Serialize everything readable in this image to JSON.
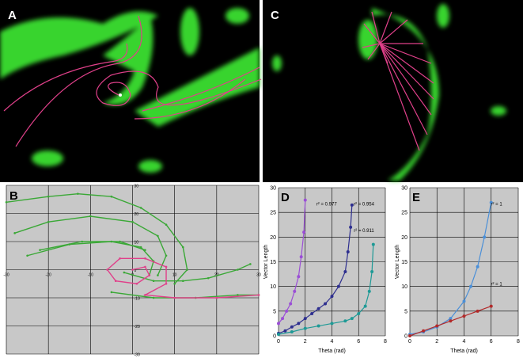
{
  "panel_labels": [
    "A",
    "B",
    "C",
    "D",
    "E"
  ],
  "chart_data": [
    {
      "type": "line",
      "xlim": [
        -30,
        30
      ],
      "ylim": [
        -30,
        30
      ],
      "xticks": [
        -30,
        -20,
        -10,
        0,
        10,
        20,
        30
      ],
      "yticks": [
        -30,
        -20,
        -10,
        0,
        10,
        20,
        30
      ],
      "grid": true,
      "series": [
        {
          "color": "#3aa836",
          "x": [
            -30,
            -20,
            -13,
            -5,
            2,
            8,
            12,
            13,
            10
          ],
          "values": [
            24,
            26,
            27,
            26,
            22,
            16,
            8,
            0,
            -5
          ]
        },
        {
          "color": "#3aa836",
          "x": [
            -28,
            -20,
            -10,
            0,
            6,
            8,
            6
          ],
          "values": [
            13,
            17,
            19,
            17,
            12,
            5,
            -2
          ]
        },
        {
          "color": "#3aa836",
          "x": [
            -25,
            -15,
            -5,
            2,
            5,
            4
          ],
          "values": [
            5,
            9,
            10,
            8,
            3,
            -2
          ]
        },
        {
          "color": "#3aa836",
          "x": [
            -22,
            -12,
            -3,
            3
          ],
          "values": [
            7,
            10,
            10,
            7
          ]
        },
        {
          "color": "#3aa836",
          "x": [
            -5,
            5,
            15,
            25,
            30
          ],
          "values": [
            -8,
            -10,
            -10,
            -9,
            -9
          ]
        },
        {
          "color": "#3aa836",
          "x": [
            -2,
            5,
            12,
            18,
            25,
            28
          ],
          "values": [
            -1,
            -4,
            -4,
            -3,
            0,
            2
          ]
        },
        {
          "color": "#e0408a",
          "x": [
            0,
            3,
            4,
            1,
            -4,
            -6,
            -3,
            3,
            8,
            8,
            3,
            10,
            20,
            30
          ],
          "values": [
            0,
            1,
            -2,
            -5,
            -4,
            0,
            4,
            4,
            1,
            -5,
            -9,
            -10,
            -10,
            -9
          ]
        }
      ]
    },
    {
      "type": "scatter",
      "xlim": [
        0,
        8
      ],
      "ylim": [
        0,
        30
      ],
      "xticks": [
        0,
        2,
        4,
        6,
        8
      ],
      "yticks": [
        0,
        5,
        10,
        15,
        20,
        25,
        30
      ],
      "grid": true,
      "x_label": "Theta (rad)",
      "y_label": "Vector Length",
      "annotations": [
        "r² = 0.977",
        "r² = 0.954",
        "r² = 0.911"
      ],
      "series": [
        {
          "color": "#9b4fd6",
          "x": [
            0,
            0.3,
            0.6,
            0.9,
            1.2,
            1.5,
            1.7,
            1.9,
            2.0
          ],
          "values": [
            2.5,
            3.5,
            5,
            6.5,
            9,
            12,
            16,
            21,
            27.5
          ]
        },
        {
          "color": "#2e2f8f",
          "x": [
            0,
            0.5,
            1,
            1.5,
            2,
            2.5,
            3,
            3.5,
            4,
            4.5,
            5,
            5.2,
            5.4,
            5.5
          ],
          "values": [
            0.5,
            1,
            1.8,
            2.5,
            3.5,
            4.5,
            5.5,
            6.5,
            8,
            10,
            13,
            17,
            22,
            26.5
          ]
        },
        {
          "color": "#1f9a96",
          "x": [
            0,
            1,
            2,
            3,
            4,
            5,
            5.5,
            6,
            6.5,
            6.8,
            7,
            7.1
          ],
          "values": [
            0.3,
            0.8,
            1.5,
            2,
            2.5,
            3,
            3.5,
            4.5,
            6,
            9,
            13,
            18.5
          ]
        }
      ]
    },
    {
      "type": "scatter",
      "xlim": [
        0,
        8
      ],
      "ylim": [
        0,
        30
      ],
      "xticks": [
        0,
        2,
        4,
        6,
        8
      ],
      "yticks": [
        0,
        5,
        10,
        15,
        20,
        25,
        30
      ],
      "grid": true,
      "x_label": "Theta (rad)",
      "y_label": "Vector Length",
      "annotations": [
        "r² = 1",
        "r² = 1"
      ],
      "series": [
        {
          "color": "#4a8fd8",
          "x": [
            0,
            1,
            2,
            3,
            4,
            4.5,
            5,
            5.5,
            6
          ],
          "values": [
            0.3,
            0.8,
            1.8,
            3.5,
            7,
            10,
            14,
            20,
            27
          ]
        },
        {
          "color": "#b22a2a",
          "x": [
            0,
            1,
            2,
            3,
            4,
            5,
            6
          ],
          "values": [
            0,
            1,
            2,
            3,
            4,
            5,
            6
          ]
        }
      ]
    }
  ]
}
